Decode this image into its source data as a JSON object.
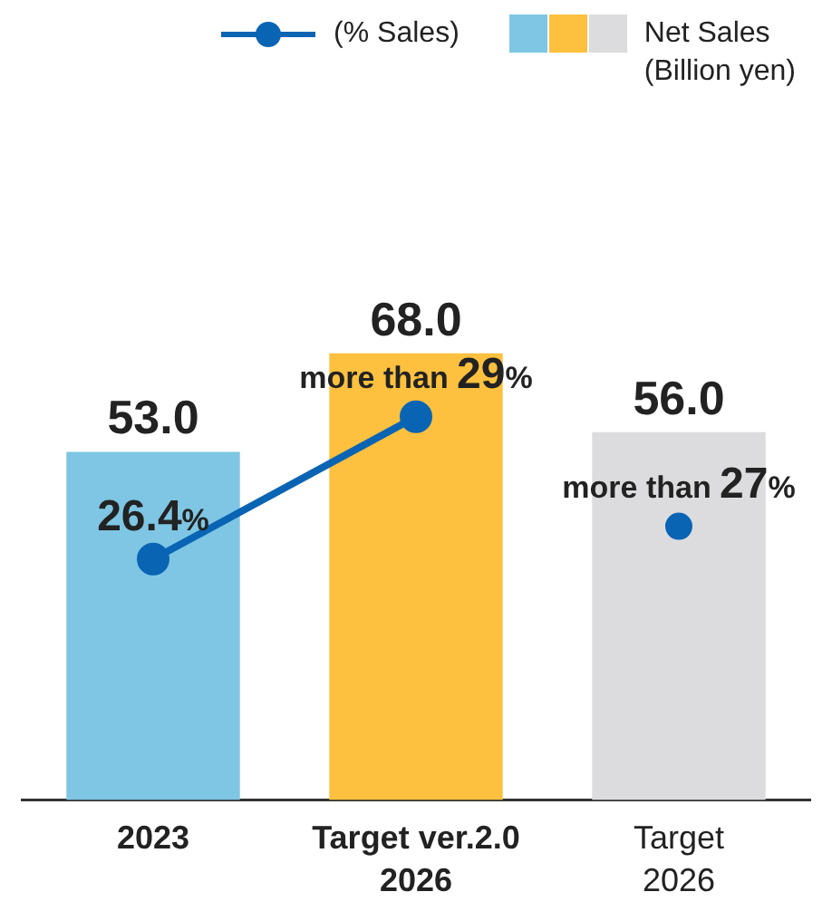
{
  "chart_data": {
    "type": "bar",
    "categories": [
      "2023",
      "Target ver.2.0\n2026",
      "Target\n2026"
    ],
    "series": [
      {
        "name": "Net Sales\n(Billion yen)",
        "colors": [
          "#7ec6e3",
          "#fdc13f",
          "#dcdcde"
        ],
        "values": [
          53,
          68,
          56
        ],
        "value_labels": [
          "53.0",
          "68.0",
          "56.0"
        ]
      },
      {
        "type": "line",
        "name": "(% Sales)",
        "color": "#0a64b4",
        "axis": "y2",
        "values": [
          26.4,
          29,
          null
        ],
        "value_labels": [
          "26.4%",
          "more than 29%",
          null
        ]
      },
      {
        "type": "scatter",
        "color": "#0a64b4",
        "axis": "y2",
        "values": [
          null,
          null,
          27
        ],
        "value_labels": [
          null,
          null,
          "more than 27%"
        ]
      }
    ],
    "marker": "circle",
    "grid": false,
    "legend": "top right",
    "tick_labels": "x"
  }
}
